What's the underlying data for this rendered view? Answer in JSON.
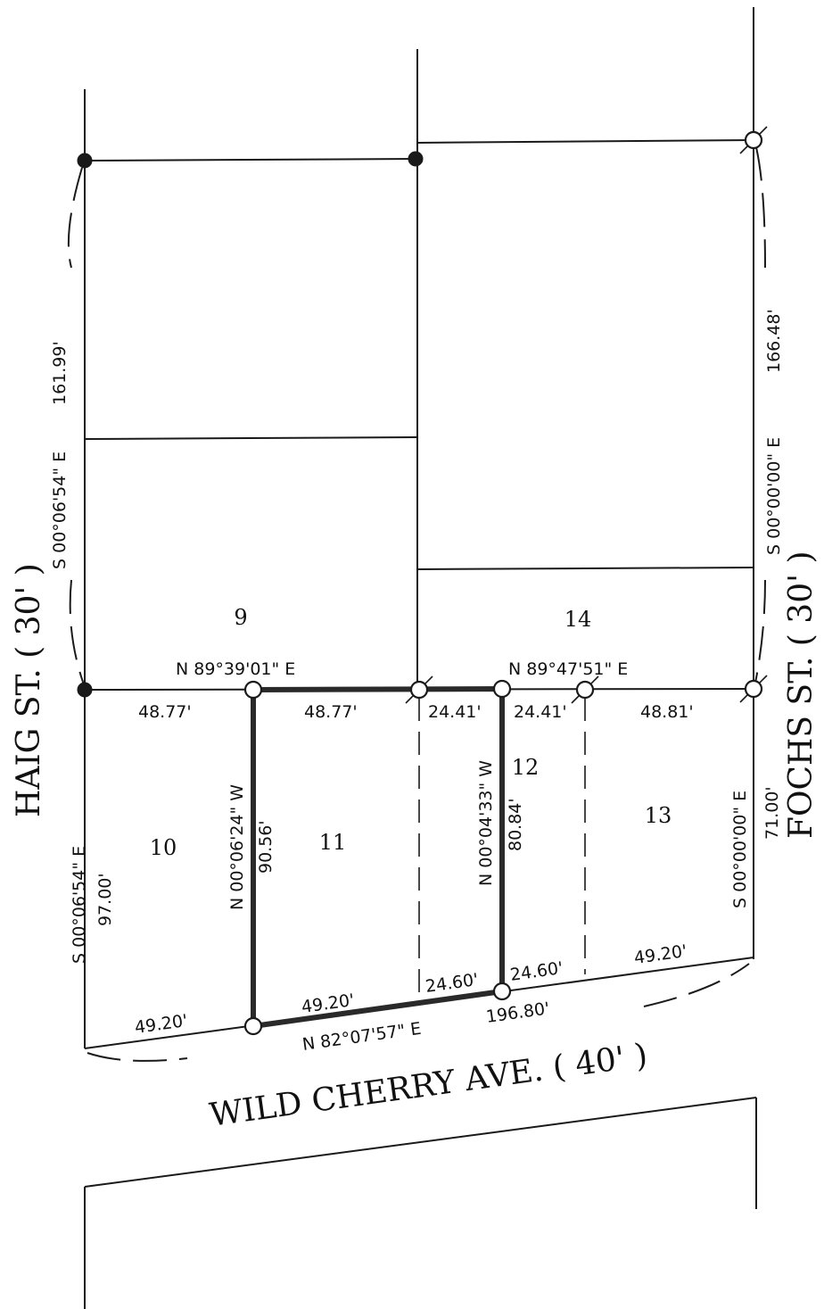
{
  "streets": {
    "west": "HAIG ST. ( 30' )",
    "east": "FOCHS ST. ( 30' )",
    "south": "WILD CHERRY AVE. ( 40' )"
  },
  "lots": {
    "lot9": "9",
    "lot10": "10",
    "lot11": "11",
    "lot12": "12",
    "lot13": "13",
    "lot14": "14"
  },
  "bearings": {
    "west_upper": "S 00°06'54\" E",
    "west_upper_dist": "161.99'",
    "west_lower": "S 00°06'54\" E",
    "west_lower_dist": "97.00'",
    "east_upper": "S 00°00'00\" E",
    "east_upper_dist": "166.48'",
    "east_lower": "S 00°00'00\" E",
    "east_lower_dist": "71.00'",
    "north_left": "N 89°39'01\" E",
    "north_right": "N 89°47'51\" E",
    "inner_left": "N 00°06'24\" W",
    "inner_left_dist": "90.56'",
    "inner_right": "N 00°04'33\" W",
    "inner_right_dist": "80.84'",
    "south": "N 82°07'57\" E",
    "south_total": "196.80'"
  },
  "distances": {
    "north_seg1": "48.77'",
    "north_seg2": "48.77'",
    "north_seg3": "24.41'",
    "north_seg4": "24.41'",
    "north_seg5": "48.81'",
    "south_seg1": "49.20'",
    "south_seg2": "49.20'",
    "south_seg3": "24.60'",
    "south_seg4": "24.60'",
    "south_seg5": "49.20'"
  },
  "colors": {
    "line": "#1a1a1a",
    "background": "#ffffff"
  }
}
